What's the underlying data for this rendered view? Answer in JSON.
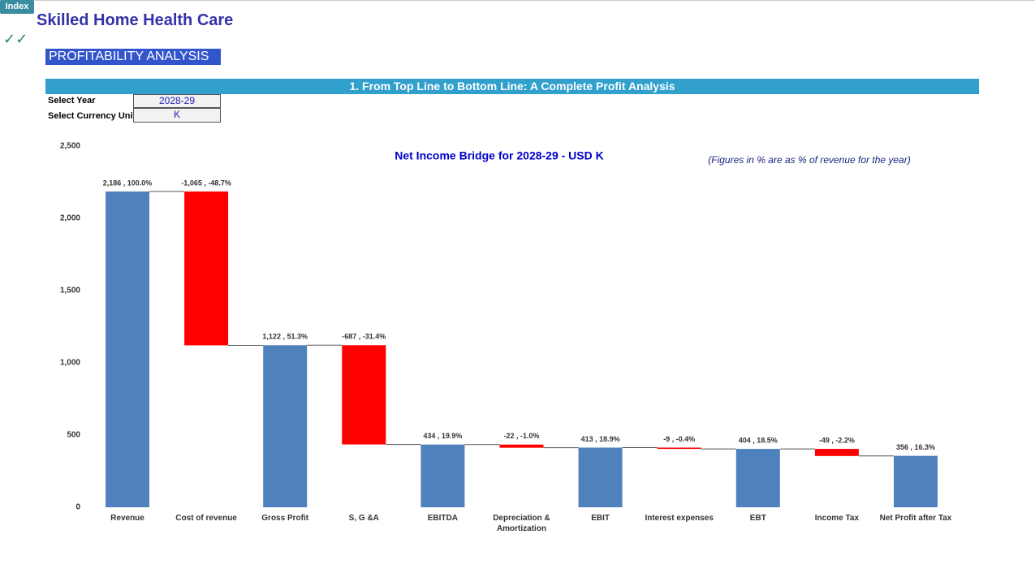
{
  "header": {
    "index_button": "Index",
    "title": "Skilled Home Health Care",
    "section": "PROFITABILITY ANALYSIS",
    "banner": "1. From Top Line to Bottom Line: A Complete Profit Analysis",
    "controls": [
      {
        "label": "Select Year",
        "value": "2028-29"
      },
      {
        "label": "Select Currency Unit",
        "value": "K"
      }
    ]
  },
  "chart_data": {
    "type": "waterfall",
    "title": "Net Income Bridge for 2028-29 - USD K",
    "note": "(Figures in % are as % of revenue for the year)",
    "categories": [
      "Revenue",
      "Cost of revenue",
      "Gross Profit",
      "S, G &A",
      "EBITDA",
      "Depreciation & Amortization",
      "EBIT",
      "Interest expenses",
      "EBT",
      "Income Tax",
      "Net Profit after Tax"
    ],
    "values": [
      2186,
      -1065,
      1122,
      -687,
      434,
      -22,
      413,
      -9,
      404,
      -49,
      356
    ],
    "value_labels": [
      "2,186 , 100.0%",
      "-1,065 , -48.7%",
      "1,122 , 51.3%",
      "-687 , -31.4%",
      "434 , 19.9%",
      "-22 , -1.0%",
      "413 , 18.9%",
      "-9 , -0.4%",
      "404 , 18.5%",
      "-49 , -2.2%",
      "356 , 16.3%"
    ],
    "colors": {
      "total": "#4f81bd",
      "decrease": "#ff0000"
    },
    "ylim": [
      0,
      2500
    ],
    "yticks": [
      0,
      500,
      {
        "value": 1000,
        "label": "1,000"
      },
      {
        "value": 1500,
        "label": "1,500"
      },
      {
        "value": 2000,
        "label": "2,000"
      },
      {
        "value": 2500,
        "label": "2,500"
      }
    ]
  }
}
